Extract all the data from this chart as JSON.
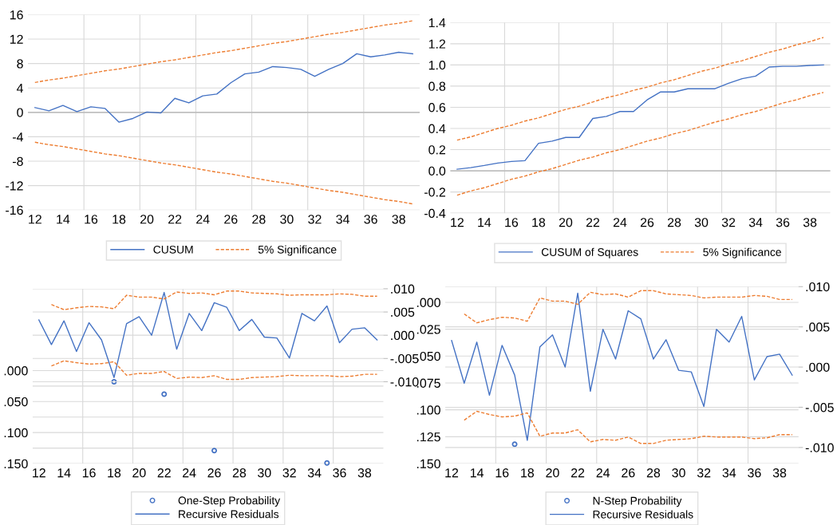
{
  "chart_data": [
    {
      "type": "line",
      "categories": [
        "12",
        null,
        "14",
        null,
        "16",
        null,
        "18",
        null,
        "20",
        null,
        "22",
        null,
        "24",
        null,
        "26",
        null,
        "28",
        null,
        "30",
        null,
        "32",
        null,
        "34",
        null,
        "36",
        null,
        "38",
        null
      ],
      "ylim": [
        -16,
        16
      ],
      "yticks": [
        -16,
        -12,
        -8,
        -4,
        0,
        4,
        8,
        12,
        16
      ],
      "grid": true,
      "legend": "bottom",
      "ref_lines": [
        {
          "axis": "y",
          "value": 0,
          "color": "#bfbfbf"
        }
      ],
      "series": [
        {
          "name": "CUSUM",
          "color": "#4472c4",
          "line_style": "solid",
          "values": [
            0.78,
            0.26,
            1.13,
            0.13,
            0.9,
            0.65,
            -1.6,
            -1.0,
            0.05,
            -0.1,
            2.3,
            1.55,
            2.7,
            3.0,
            4.85,
            6.3,
            6.6,
            7.5,
            7.35,
            7.05,
            5.9,
            7.05,
            8.0,
            9.6,
            9.1,
            9.4,
            9.85,
            9.6
          ]
        },
        {
          "name": "5% Significance",
          "color": "#ed7d31",
          "line_style": "dashed",
          "values": [
            4.9,
            5.3,
            5.6,
            6.0,
            6.4,
            6.8,
            7.1,
            7.5,
            7.9,
            8.3,
            8.6,
            9.0,
            9.4,
            9.8,
            10.1,
            10.5,
            10.9,
            11.3,
            11.6,
            12.0,
            12.4,
            12.8,
            13.1,
            13.5,
            13.9,
            14.3,
            14.6,
            15.0
          ]
        },
        {
          "color": "#ed7d31",
          "line_style": "dashed",
          "values": [
            -4.9,
            -5.3,
            -5.6,
            -6.0,
            -6.4,
            -6.8,
            -7.1,
            -7.5,
            -7.9,
            -8.3,
            -8.6,
            -9.0,
            -9.4,
            -9.8,
            -10.1,
            -10.5,
            -10.9,
            -11.3,
            -11.6,
            -12.0,
            -12.4,
            -12.8,
            -13.1,
            -13.5,
            -13.9,
            -14.3,
            -14.6,
            -15.0
          ]
        }
      ]
    },
    {
      "type": "line",
      "categories": [
        "12",
        null,
        "14",
        null,
        "16",
        null,
        "18",
        null,
        "20",
        null,
        "22",
        null,
        "24",
        null,
        "26",
        null,
        "28",
        null,
        "30",
        null,
        "32",
        null,
        "34",
        null,
        "36",
        null,
        "38",
        null
      ],
      "ylim": [
        -0.4,
        1.4
      ],
      "yticks": [
        {
          "value": -0.4,
          "label": "-0.4"
        },
        {
          "value": -0.2,
          "label": "-0.2"
        },
        {
          "value": 0,
          "label": "0.0"
        },
        {
          "value": 0.2,
          "label": "0.2"
        },
        {
          "value": 0.4,
          "label": "0.4"
        },
        {
          "value": 0.6,
          "label": "0.6"
        },
        {
          "value": 0.8,
          "label": "0.8"
        },
        {
          "value": 1.0,
          "label": "1.0"
        },
        {
          "value": 1.2,
          "label": "1.2"
        },
        {
          "value": 1.4,
          "label": "1.4"
        }
      ],
      "grid": true,
      "legend": "bottom",
      "ref_lines": [
        {
          "axis": "y",
          "value": 0,
          "color": "#bfbfbf"
        }
      ],
      "series": [
        {
          "name": "CUSUM of Squares",
          "color": "#4472c4",
          "line_style": "solid",
          "values": [
            0.015,
            0.03,
            0.05,
            0.073,
            0.088,
            0.096,
            0.26,
            0.28,
            0.315,
            0.315,
            0.494,
            0.514,
            0.56,
            0.56,
            0.67,
            0.745,
            0.745,
            0.775,
            0.775,
            0.775,
            0.826,
            0.87,
            0.894,
            0.98,
            0.987,
            0.987,
            0.995,
            1.0
          ]
        },
        {
          "name": "5% Significance",
          "color": "#ed7d31",
          "line_style": "dashed",
          "values": [
            0.29,
            0.32,
            0.36,
            0.4,
            0.43,
            0.47,
            0.5,
            0.54,
            0.58,
            0.61,
            0.65,
            0.69,
            0.72,
            0.76,
            0.79,
            0.83,
            0.86,
            0.9,
            0.94,
            0.97,
            1.01,
            1.04,
            1.08,
            1.12,
            1.15,
            1.19,
            1.22,
            1.26
          ]
        },
        {
          "color": "#ed7d31",
          "line_style": "dashed",
          "values": [
            -0.23,
            -0.19,
            -0.16,
            -0.12,
            -0.08,
            -0.05,
            -0.01,
            0.02,
            0.06,
            0.1,
            0.13,
            0.17,
            0.2,
            0.24,
            0.28,
            0.31,
            0.35,
            0.38,
            0.42,
            0.46,
            0.49,
            0.53,
            0.56,
            0.6,
            0.64,
            0.67,
            0.71,
            0.74
          ]
        }
      ]
    },
    {
      "type": "line",
      "categories": [
        "12",
        null,
        "14",
        null,
        "16",
        null,
        "18",
        null,
        "20",
        null,
        "22",
        null,
        "24",
        null,
        "26",
        null,
        "28",
        null,
        "30",
        null,
        "32",
        null,
        "34",
        null,
        "36",
        null,
        "38",
        null
      ],
      "ylim": [
        0.15,
        -0.132
      ],
      "yticks": [
        {
          "value": 0,
          "label": ".000"
        },
        {
          "value": 0.025,
          "label": null
        },
        {
          "value": 0.05,
          "label": ".050"
        },
        {
          "value": 0.075,
          "label": null
        },
        {
          "value": 0.1,
          "label": ".100"
        },
        {
          "value": 0.125,
          "label": null
        },
        {
          "value": 0.15,
          "label": ".150"
        }
      ],
      "y2lim": [
        -0.0276,
        0.01
      ],
      "y2ticks": [
        {
          "value": -0.01,
          "label": "-.010"
        },
        {
          "value": -0.005,
          "label": "-.005"
        },
        {
          "value": 0,
          "label": ".000"
        },
        {
          "value": 0.005,
          "label": ".005"
        },
        {
          "value": 0.01,
          "label": ".010"
        }
      ],
      "grid": true,
      "legend": "bottom",
      "series": [
        {
          "name": "One-Step Probability",
          "type": "scatter",
          "marker": "circle",
          "color": "#4472c4",
          "values": [
            null,
            null,
            null,
            null,
            null,
            null,
            0.018,
            null,
            null,
            null,
            0.038,
            null,
            null,
            null,
            0.129,
            null,
            null,
            null,
            null,
            null,
            null,
            null,
            null,
            0.149,
            null,
            null,
            null,
            null
          ]
        },
        {
          "name": "Recursive Residuals",
          "axis": "y2",
          "color": "#4472c4",
          "line_style": "solid",
          "values": [
            0.0033,
            -0.002,
            0.0031,
            -0.0035,
            0.0027,
            -0.001,
            -0.0091,
            0.0025,
            0.004,
            0.0,
            0.0092,
            -0.003,
            0.0047,
            0.001,
            0.007,
            0.006,
            0.001,
            0.0034,
            -0.0004,
            -0.0006,
            -0.0049,
            0.0047,
            0.0031,
            0.0063,
            -0.0016,
            0.0013,
            0.0016,
            -0.001
          ]
        },
        {
          "axis": "y2",
          "color": "#ed7d31",
          "line_style": "dashed",
          "values": [
            null,
            0.0066,
            0.0055,
            0.0059,
            0.0062,
            0.0061,
            0.0057,
            0.0086,
            0.0082,
            0.0082,
            0.0078,
            0.0093,
            0.009,
            0.0091,
            0.0087,
            0.0095,
            0.0095,
            0.0091,
            0.009,
            0.0089,
            0.0086,
            0.0087,
            0.0087,
            0.0087,
            0.0089,
            0.0088,
            0.0084,
            0.0084
          ]
        },
        {
          "axis": "y2",
          "color": "#ed7d31",
          "line_style": "dashed",
          "values": [
            null,
            -0.0066,
            -0.0055,
            -0.0059,
            -0.0062,
            -0.0061,
            -0.0057,
            -0.0086,
            -0.0082,
            -0.0082,
            -0.0078,
            -0.0093,
            -0.009,
            -0.0091,
            -0.0087,
            -0.0095,
            -0.0095,
            -0.0091,
            -0.009,
            -0.0089,
            -0.0086,
            -0.0087,
            -0.0087,
            -0.0087,
            -0.0089,
            -0.0088,
            -0.0084,
            -0.0084
          ]
        }
      ]
    },
    {
      "type": "line",
      "categories": [
        "12",
        null,
        "14",
        null,
        "16",
        null,
        "18",
        null,
        "20",
        null,
        "22",
        null,
        "24",
        null,
        "26",
        null,
        "28",
        null,
        "30",
        null,
        "32",
        null,
        "34",
        null,
        "36",
        null,
        "38",
        null
      ],
      "ylim": [
        0.15,
        -0.0146
      ],
      "yticks": [
        {
          "value": 0,
          "label": ".000"
        },
        {
          "value": 0.025,
          "label": ".025"
        },
        {
          "value": 0.05,
          "label": ".050"
        },
        {
          "value": 0.075,
          "label": ".075"
        },
        {
          "value": 0.1,
          "label": ".100"
        },
        {
          "value": 0.125,
          "label": ".125"
        },
        {
          "value": 0.15,
          "label": ".150"
        }
      ],
      "y2lim": [
        -0.012,
        0.01
      ],
      "y2ticks": [
        {
          "value": -0.01,
          "label": "-.010"
        },
        {
          "value": -0.005,
          "label": "-.005"
        },
        {
          "value": 0,
          "label": ".000"
        },
        {
          "value": 0.005,
          "label": ".005"
        },
        {
          "value": 0.01,
          "label": ".010"
        }
      ],
      "grid": true,
      "legend": "bottom",
      "series": [
        {
          "name": "N-Step Probability",
          "type": "scatter",
          "marker": "circle",
          "color": "#4472c4",
          "values": [
            null,
            null,
            null,
            null,
            null,
            0.132,
            null,
            null,
            null,
            null,
            null,
            null,
            null,
            null,
            null,
            null,
            null,
            null,
            null,
            null,
            null,
            null,
            null,
            null,
            null,
            null,
            null,
            null
          ]
        },
        {
          "name": "Recursive Residuals",
          "axis": "y2",
          "color": "#4472c4",
          "line_style": "solid",
          "values": [
            0.0033,
            -0.002,
            0.0031,
            -0.0035,
            0.0027,
            -0.001,
            -0.0091,
            0.0025,
            0.004,
            0.0,
            0.0092,
            -0.003,
            0.0047,
            0.001,
            0.007,
            0.006,
            0.001,
            0.0034,
            -0.0004,
            -0.0006,
            -0.0049,
            0.0047,
            0.0031,
            0.0063,
            -0.0016,
            0.0013,
            0.0016,
            -0.001
          ]
        },
        {
          "axis": "y2",
          "color": "#ed7d31",
          "line_style": "dashed",
          "values": [
            null,
            0.0066,
            0.0055,
            0.0059,
            0.0062,
            0.0061,
            0.0057,
            0.0086,
            0.0082,
            0.0082,
            0.0078,
            0.0093,
            0.009,
            0.0091,
            0.0087,
            0.0095,
            0.0095,
            0.0091,
            0.009,
            0.0089,
            0.0086,
            0.0087,
            0.0087,
            0.0087,
            0.0089,
            0.0088,
            0.0084,
            0.0084
          ]
        },
        {
          "axis": "y2",
          "color": "#ed7d31",
          "line_style": "dashed",
          "values": [
            null,
            -0.0066,
            -0.0055,
            -0.0059,
            -0.0062,
            -0.0061,
            -0.0057,
            -0.0086,
            -0.0082,
            -0.0082,
            -0.0078,
            -0.0093,
            -0.009,
            -0.0091,
            -0.0087,
            -0.0095,
            -0.0095,
            -0.0091,
            -0.009,
            -0.0089,
            -0.0086,
            -0.0087,
            -0.0087,
            -0.0087,
            -0.0089,
            -0.0088,
            -0.0084,
            -0.0084
          ]
        }
      ]
    }
  ]
}
